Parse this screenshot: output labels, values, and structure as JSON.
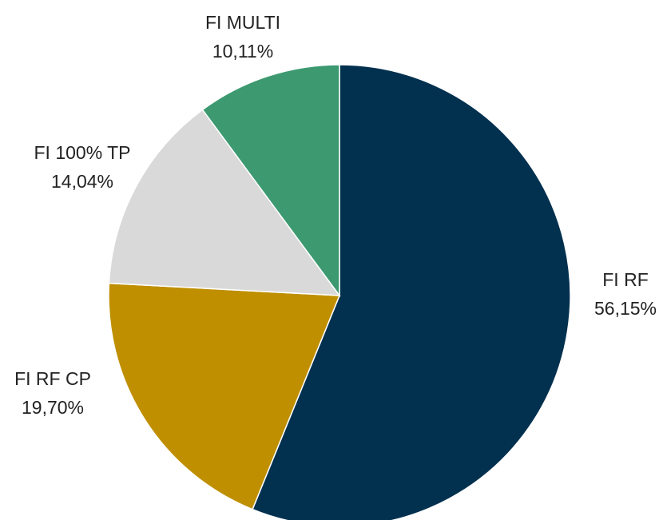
{
  "chart_data": {
    "type": "pie",
    "categories": [
      "FI RF",
      "FI RF CP",
      "FI 100% TP",
      "FI MULTI"
    ],
    "values": [
      56.15,
      19.7,
      14.04,
      10.11
    ],
    "value_labels": [
      "56,15%",
      "19,70%",
      "14,04%",
      "10,11%"
    ],
    "colors": [
      "#02304f",
      "#bf8f00",
      "#d9d9d9",
      "#3d9970"
    ]
  }
}
